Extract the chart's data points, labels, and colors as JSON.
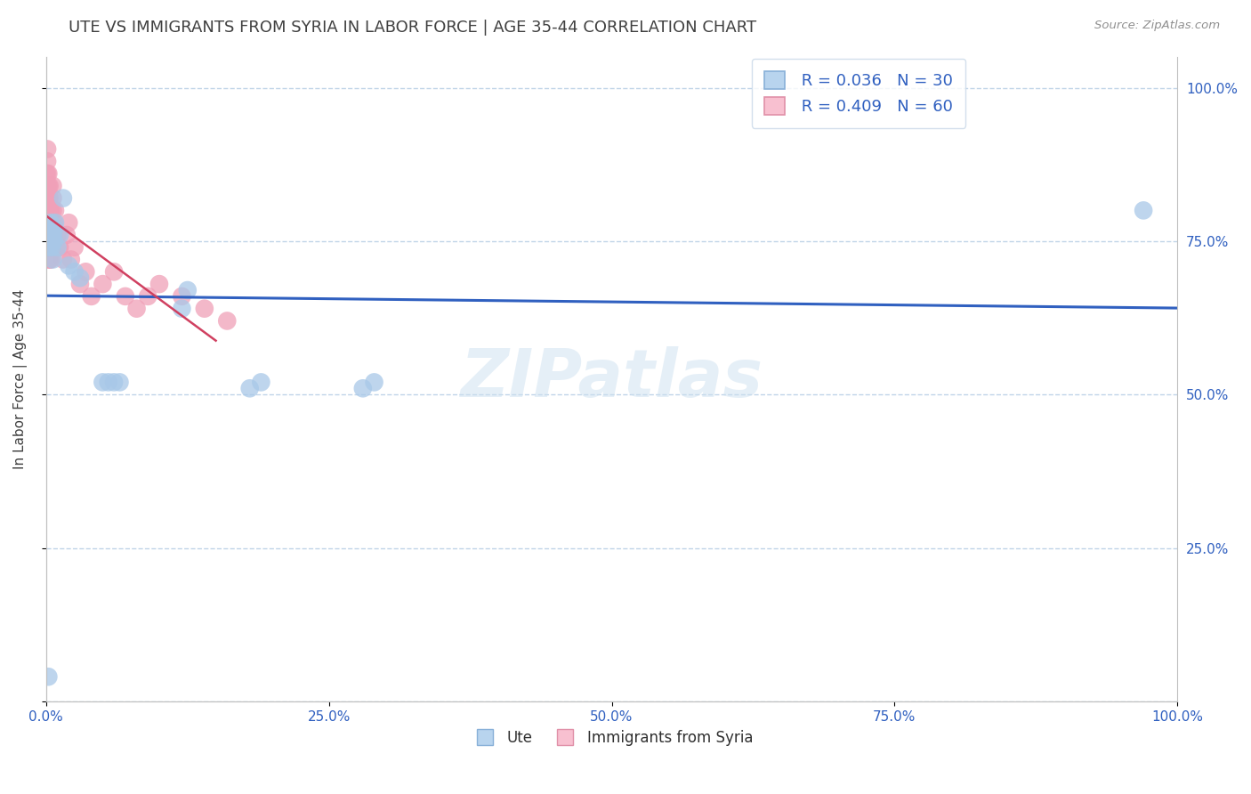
{
  "title": "UTE VS IMMIGRANTS FROM SYRIA IN LABOR FORCE | AGE 35-44 CORRELATION CHART",
  "source": "Source: ZipAtlas.com",
  "ylabel": "In Labor Force | Age 35-44",
  "blue_label": "Ute",
  "pink_label": "Immigrants from Syria",
  "blue_R": 0.036,
  "blue_N": 30,
  "pink_R": 0.409,
  "pink_N": 60,
  "blue_color": "#a8c8e8",
  "pink_color": "#f0a0b8",
  "blue_line_color": "#3060c0",
  "pink_line_color": "#d04060",
  "title_color": "#404040",
  "source_color": "#909090",
  "axis_label_color": "#404040",
  "tick_color": "#3060c0",
  "watermark": "ZIPatlas",
  "background_color": "#ffffff",
  "grid_color": "#c0d4e8",
  "blue_x": [
    0.002,
    0.003,
    0.003,
    0.004,
    0.004,
    0.005,
    0.005,
    0.006,
    0.006,
    0.007,
    0.007,
    0.008,
    0.01,
    0.012,
    0.015,
    0.02,
    0.025,
    0.03,
    0.05,
    0.055,
    0.06,
    0.065,
    0.12,
    0.125,
    0.18,
    0.19,
    0.28,
    0.29,
    0.97,
    0.002
  ],
  "blue_y": [
    0.76,
    0.75,
    0.74,
    0.78,
    0.77,
    0.75,
    0.74,
    0.76,
    0.72,
    0.75,
    0.77,
    0.78,
    0.74,
    0.76,
    0.82,
    0.71,
    0.7,
    0.69,
    0.52,
    0.52,
    0.52,
    0.52,
    0.64,
    0.67,
    0.51,
    0.52,
    0.51,
    0.52,
    0.8,
    0.04
  ],
  "pink_x": [
    0.0,
    0.0,
    0.0,
    0.0,
    0.001,
    0.001,
    0.001,
    0.001,
    0.001,
    0.001,
    0.001,
    0.001,
    0.002,
    0.002,
    0.002,
    0.002,
    0.002,
    0.002,
    0.002,
    0.002,
    0.003,
    0.003,
    0.003,
    0.003,
    0.003,
    0.003,
    0.003,
    0.004,
    0.004,
    0.004,
    0.004,
    0.004,
    0.005,
    0.005,
    0.006,
    0.006,
    0.006,
    0.007,
    0.007,
    0.008,
    0.009,
    0.01,
    0.012,
    0.015,
    0.018,
    0.02,
    0.022,
    0.025,
    0.03,
    0.035,
    0.04,
    0.05,
    0.06,
    0.07,
    0.08,
    0.09,
    0.1,
    0.12,
    0.14,
    0.16
  ],
  "pink_y": [
    0.8,
    0.82,
    0.84,
    0.86,
    0.76,
    0.78,
    0.8,
    0.82,
    0.84,
    0.86,
    0.88,
    0.9,
    0.72,
    0.74,
    0.76,
    0.78,
    0.8,
    0.82,
    0.84,
    0.86,
    0.72,
    0.74,
    0.76,
    0.78,
    0.8,
    0.82,
    0.84,
    0.72,
    0.74,
    0.76,
    0.78,
    0.8,
    0.78,
    0.76,
    0.8,
    0.82,
    0.84,
    0.76,
    0.78,
    0.8,
    0.74,
    0.76,
    0.74,
    0.72,
    0.76,
    0.78,
    0.72,
    0.74,
    0.68,
    0.7,
    0.66,
    0.68,
    0.7,
    0.66,
    0.64,
    0.66,
    0.68,
    0.66,
    0.64,
    0.62
  ],
  "xlim": [
    0.0,
    1.0
  ],
  "ylim": [
    0.0,
    1.05
  ],
  "x_ticks": [
    0.0,
    0.25,
    0.5,
    0.75,
    1.0
  ],
  "x_labels": [
    "0.0%",
    "25.0%",
    "50.0%",
    "75.0%",
    "100.0%"
  ],
  "y_ticks": [
    0.0,
    0.25,
    0.5,
    0.75,
    1.0
  ],
  "y_right_labels": [
    "",
    "25.0%",
    "50.0%",
    "75.0%",
    "100.0%"
  ]
}
